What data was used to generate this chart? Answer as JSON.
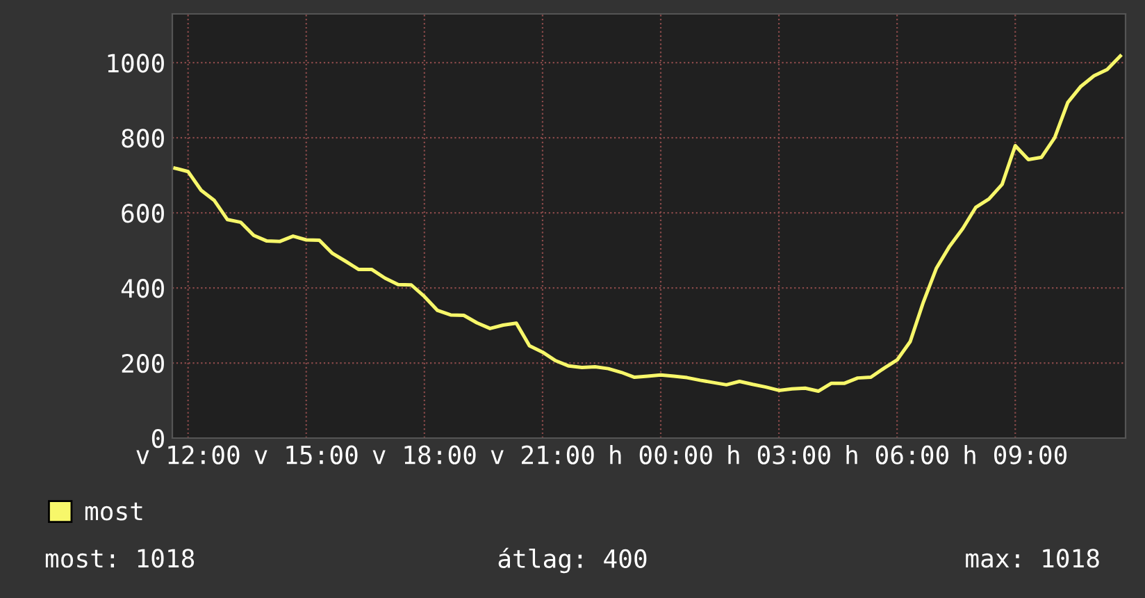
{
  "chart_data": {
    "type": "line",
    "categories": [
      null,
      "v 12:00",
      null,
      null,
      null,
      null,
      null,
      null,
      null,
      null,
      "v 15:00",
      null,
      null,
      null,
      null,
      null,
      null,
      null,
      null,
      "v 18:00",
      null,
      null,
      null,
      null,
      null,
      null,
      null,
      null,
      "v 21:00",
      null,
      null,
      null,
      null,
      null,
      null,
      null,
      null,
      "h 00:00",
      null,
      null,
      null,
      null,
      null,
      null,
      null,
      null,
      "h 03:00",
      null,
      null,
      null,
      null,
      null,
      null,
      null,
      null,
      "h 06:00",
      null,
      null,
      null,
      null,
      null,
      null,
      null,
      null,
      "h 09:00",
      null,
      null,
      null,
      null,
      null,
      null,
      null,
      null
    ],
    "ylim": [
      0,
      1130
    ],
    "yticks": [
      0,
      200,
      400,
      600,
      800,
      1000
    ],
    "grid": true,
    "legend": "bottom left",
    "line_style": "solid",
    "series": [
      {
        "name": "most",
        "color": "#f7f76a",
        "values": [
          719,
          710,
          660,
          633,
          582,
          575,
          540,
          525,
          524,
          538,
          528,
          527,
          492,
          471,
          449,
          449,
          426,
          409,
          408,
          377,
          340,
          328,
          327,
          307,
          292,
          301,
          306,
          246,
          229,
          206,
          192,
          188,
          190,
          185,
          175,
          162,
          165,
          168,
          165,
          161,
          154,
          148,
          142,
          151,
          143,
          136,
          127,
          131,
          133,
          125,
          146,
          146,
          160,
          162,
          186,
          208,
          257,
          362,
          453,
          511,
          558,
          615,
          637,
          676,
          779,
          742,
          748,
          800,
          894,
          937,
          965,
          982,
          1018
        ]
      }
    ],
    "annotations": [
      "most: 1018",
      "átlag: 400",
      "max: 1018"
    ]
  }
}
